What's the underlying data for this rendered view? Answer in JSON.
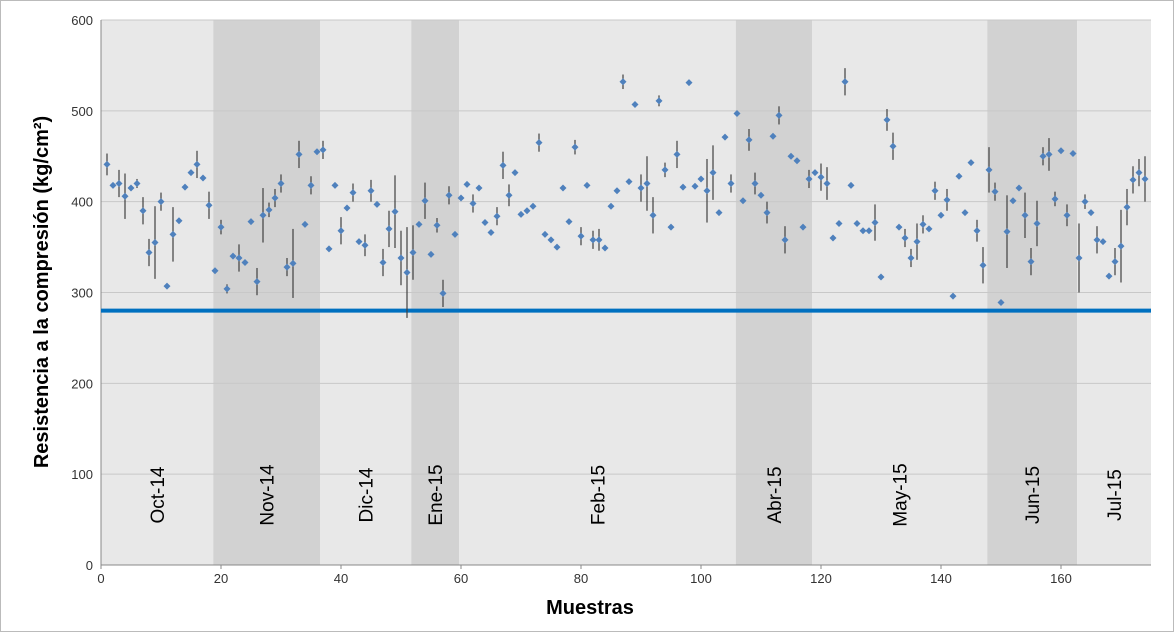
{
  "chart_data": {
    "type": "scatter",
    "ylabel": "Resistencia a la compresión (kg/cm²)",
    "xlabel": "Muestras",
    "xlim": [
      0,
      175
    ],
    "ylim": [
      0,
      600
    ],
    "xticks": [
      0,
      20,
      40,
      60,
      80,
      100,
      120,
      140,
      160
    ],
    "yticks": [
      0,
      100,
      200,
      300,
      400,
      500,
      600
    ],
    "grid": true,
    "periods": [
      {
        "label": "Oct-14",
        "start": 0,
        "end": 18.7,
        "color": "#e8e8e8"
      },
      {
        "label": "Nov-14",
        "start": 18.7,
        "end": 36.5,
        "color": "#d2d2d2"
      },
      {
        "label": "Dic-14",
        "start": 36.5,
        "end": 51.7,
        "color": "#e8e8e8"
      },
      {
        "label": "Ene-15",
        "start": 51.7,
        "end": 59.7,
        "color": "#d2d2d2"
      },
      {
        "label": "Feb-15",
        "start": 59.7,
        "end": 105.8,
        "color": "#e8e8e8"
      },
      {
        "label": "Abr-15",
        "start": 105.8,
        "end": 118.5,
        "color": "#d2d2d2"
      },
      {
        "label": "May-15",
        "start": 118.5,
        "end": 147.7,
        "color": "#e8e8e8"
      },
      {
        "label": "Jun-15",
        "start": 147.7,
        "end": 162.7,
        "color": "#d2d2d2"
      },
      {
        "label": "Jul-15",
        "start": 162.7,
        "end": 175,
        "color": "#e8e8e8"
      }
    ],
    "reference_line": {
      "value": 280,
      "color": "#0070c0"
    },
    "series": [
      {
        "color": "#4f81bd",
        "error_color": "#404040",
        "x": [
          1,
          2,
          3,
          4,
          5,
          6,
          7,
          8,
          9,
          10,
          11,
          12,
          13,
          14,
          15,
          16,
          17,
          18,
          19,
          20,
          21,
          22,
          23,
          24,
          25,
          26,
          27,
          28,
          29,
          30,
          31,
          32,
          33,
          34,
          35,
          36,
          37,
          38,
          39,
          40,
          41,
          42,
          43,
          44,
          45,
          46,
          47,
          48,
          49,
          50,
          51,
          52,
          53,
          54,
          55,
          56,
          57,
          58,
          59,
          60,
          61,
          62,
          63,
          64,
          65,
          66,
          67,
          68,
          69,
          70,
          71,
          72,
          73,
          74,
          75,
          76,
          77,
          78,
          79,
          80,
          81,
          82,
          83,
          84,
          85,
          86,
          87,
          88,
          89,
          90,
          91,
          92,
          93,
          94,
          95,
          96,
          97,
          98,
          99,
          100,
          101,
          102,
          103,
          104,
          105,
          106,
          107,
          108,
          109,
          110,
          111,
          112,
          113,
          114,
          115,
          116,
          117,
          118,
          119,
          120,
          121,
          122,
          123,
          124,
          125,
          126,
          127,
          128,
          129,
          130,
          131,
          132,
          133,
          134,
          135,
          136,
          137,
          138,
          139,
          140,
          141,
          142,
          143,
          144,
          145,
          146,
          147,
          148,
          149,
          150,
          151,
          152,
          153,
          154,
          155,
          156,
          157,
          158,
          159,
          160,
          161,
          162,
          163,
          164,
          165,
          166,
          167,
          168,
          169,
          170,
          171,
          172,
          173,
          174
        ],
        "values": [
          441,
          418,
          420,
          406,
          415,
          420,
          390,
          344,
          355,
          400,
          307,
          364,
          379,
          416,
          432,
          441,
          426,
          396,
          324,
          372,
          304,
          340,
          338,
          333,
          378,
          312,
          385,
          391,
          404,
          420,
          328,
          332,
          452,
          375,
          418,
          455,
          457,
          348,
          418,
          368,
          393,
          410,
          356,
          352,
          412,
          397,
          333,
          370,
          389,
          338,
          322,
          344,
          375,
          401,
          342,
          374,
          299,
          407,
          364,
          404,
          419,
          398,
          415,
          377,
          366,
          384,
          440,
          407,
          432,
          386,
          390,
          395,
          465,
          364,
          358,
          350,
          415,
          378,
          460,
          362,
          418,
          358,
          358,
          349,
          395,
          412,
          532,
          422,
          507,
          415,
          420,
          385,
          511,
          435,
          372,
          452,
          416,
          531,
          417,
          425,
          412,
          432,
          388,
          471,
          420,
          497,
          401,
          468,
          420,
          407,
          388,
          472,
          495,
          358,
          450,
          445,
          372,
          425,
          432,
          427,
          420,
          360,
          376,
          532,
          418,
          376,
          368,
          368,
          377,
          317,
          490,
          461,
          372,
          360,
          338,
          356,
          375,
          370,
          412,
          385,
          402,
          296,
          428,
          388,
          443,
          368,
          330,
          435,
          411,
          289,
          367,
          401,
          415,
          385,
          334,
          376,
          450,
          452,
          403,
          456,
          385,
          453,
          338,
          400,
          388,
          358,
          356,
          318,
          334,
          351,
          394,
          424,
          432,
          425
        ],
        "errors": [
          12,
          null,
          15,
          25,
          null,
          5,
          15,
          15,
          40,
          10,
          null,
          30,
          null,
          null,
          null,
          15,
          null,
          15,
          null,
          8,
          5,
          null,
          15,
          null,
          null,
          15,
          30,
          8,
          10,
          10,
          10,
          38,
          15,
          null,
          10,
          null,
          10,
          null,
          null,
          15,
          null,
          10,
          null,
          12,
          12,
          null,
          15,
          20,
          40,
          30,
          50,
          30,
          null,
          20,
          null,
          8,
          15,
          10,
          null,
          null,
          null,
          10,
          null,
          null,
          null,
          10,
          15,
          12,
          null,
          null,
          null,
          null,
          10,
          null,
          null,
          null,
          null,
          null,
          8,
          10,
          null,
          10,
          12,
          null,
          null,
          null,
          8,
          null,
          null,
          15,
          30,
          20,
          6,
          8,
          null,
          15,
          null,
          null,
          null,
          null,
          35,
          30,
          null,
          null,
          10,
          null,
          null,
          12,
          12,
          null,
          12,
          null,
          10,
          15,
          null,
          null,
          null,
          10,
          null,
          15,
          18,
          null,
          null,
          15,
          null,
          null,
          null,
          null,
          20,
          null,
          12,
          15,
          null,
          10,
          10,
          20,
          10,
          null,
          10,
          null,
          12,
          null,
          null,
          null,
          null,
          12,
          20,
          25,
          10,
          null,
          40,
          null,
          null,
          25,
          15,
          25,
          10,
          18,
          8,
          null,
          12,
          null,
          38,
          8,
          null,
          15,
          null,
          null,
          15,
          40,
          20,
          15,
          15,
          25
        ]
      }
    ]
  }
}
